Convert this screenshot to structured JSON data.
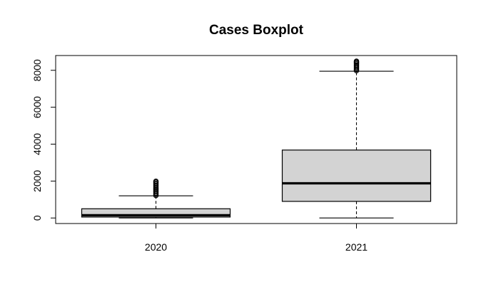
{
  "chart_data": {
    "type": "boxplot",
    "title": "Cases Boxplot",
    "xlabel": "",
    "ylabel": "",
    "ylim": [
      -300,
      8800
    ],
    "yticks": [
      0,
      2000,
      4000,
      6000,
      8000
    ],
    "grid": false,
    "categories": [
      "2020",
      "2021"
    ],
    "boxes": [
      {
        "name": "2020",
        "min": 0,
        "q1": 50,
        "median": 150,
        "q3": 500,
        "max": 1200,
        "outliers": [
          1220,
          1280,
          1340,
          1400,
          1460,
          1520,
          1580,
          1640,
          1700,
          1760,
          1820,
          1880,
          1940,
          1990
        ]
      },
      {
        "name": "2021",
        "min": 0,
        "q1": 900,
        "median": 1880,
        "q3": 3680,
        "max": 7950,
        "outliers": [
          7980,
          8040,
          8100,
          8160,
          8220,
          8280,
          8340,
          8400,
          8450,
          8490
        ]
      }
    ],
    "colors": {
      "box_fill": "#d3d3d3",
      "stroke": "#000000",
      "background": "#ffffff"
    }
  }
}
